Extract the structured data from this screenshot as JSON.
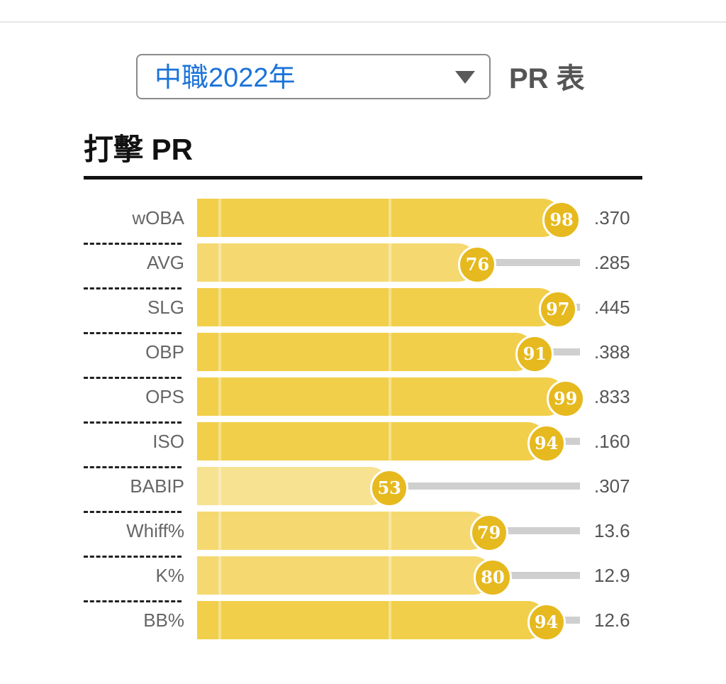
{
  "header": {
    "league_select_value": "中職2022年",
    "pr_table_title": "PR 表"
  },
  "section": {
    "title": "打擊 PR"
  },
  "colors": {
    "bar_high": "#f2cf4a",
    "bar_mid": "#f5d970",
    "bar_low": "#f7e291",
    "badge": "#e6b91e",
    "track": "#cfcfcf",
    "select_text": "#1a73d9"
  },
  "chart_data": {
    "type": "bar",
    "categories": [
      "wOBA",
      "AVG",
      "SLG",
      "OBP",
      "OPS",
      "ISO",
      "BABIP",
      "Whiff%",
      "K%",
      "BB%"
    ],
    "values": [
      98,
      76,
      97,
      91,
      99,
      94,
      53,
      79,
      80,
      94
    ],
    "value_labels": [
      ".370",
      ".285",
      ".445",
      ".388",
      ".833",
      ".160",
      ".307",
      "13.6",
      "12.9",
      "12.6"
    ],
    "ylim": [
      0,
      100
    ],
    "orientation": "horizontal"
  }
}
